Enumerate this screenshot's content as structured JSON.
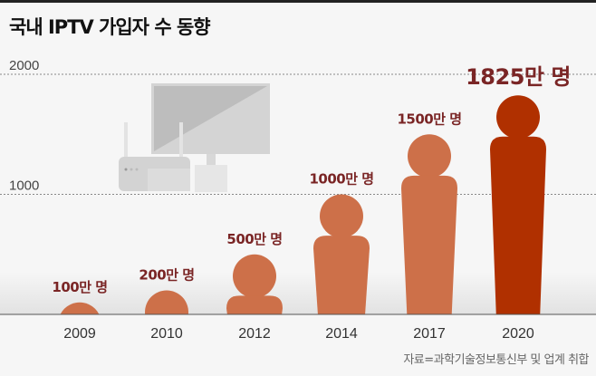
{
  "title": "국내 IPTV 가입자 수 동향",
  "source": "자료=과학기술정보통신부 및 업계 취합",
  "colors": {
    "figure": "#cd7049",
    "highlight": "#b03000",
    "label": "#7a2525",
    "axis": "#555555"
  },
  "chart_data": {
    "type": "bar",
    "title": "국내 IPTV 가입자 수 동향",
    "categories": [
      "2009",
      "2010",
      "2012",
      "2014",
      "2017",
      "2020"
    ],
    "values": [
      100,
      200,
      500,
      1000,
      1500,
      1825
    ],
    "data_labels": [
      "100만 명",
      "200만 명",
      "500만 명",
      "1000만 명",
      "1500만 명",
      "1825만 명"
    ],
    "unit": "만 명",
    "y_ticks": [
      1000,
      2000
    ],
    "y_tick_labels": [
      "1000",
      "2000"
    ],
    "ylim": [
      0,
      2000
    ],
    "grid": "dotted horizontal lines at ticks",
    "mark_shape": "person silhouette",
    "highlight_category": "2020"
  }
}
